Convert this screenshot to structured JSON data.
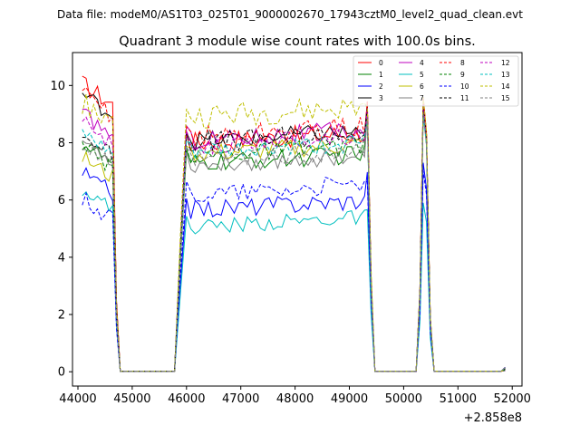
{
  "header": {
    "suptitle": "Data file: modeM0/AS1T03_025T01_9000002670_17943cztM0_level2_quad_clean.evt"
  },
  "chart_data": {
    "type": "line",
    "title": "Quadrant 3 module wise count rates with 100.0s bins.",
    "xlabel": "",
    "ylabel": "",
    "x_offset_label": "+2.858e8",
    "xlim": [
      43900,
      52180
    ],
    "ylim": [
      -0.5,
      11.15
    ],
    "xticks": [
      44000,
      45000,
      46000,
      47000,
      48000,
      49000,
      50000,
      51000,
      52000
    ],
    "xtick_labels": [
      "44000",
      "45000",
      "46000",
      "47000",
      "48000",
      "49000",
      "50000",
      "51000",
      "52000"
    ],
    "yticks": [
      0,
      2,
      4,
      6,
      8,
      10
    ],
    "ytick_labels": [
      "0",
      "2",
      "4",
      "6",
      "8",
      "10"
    ],
    "grid": false,
    "legend_position": "top-right",
    "legend_columns": 4,
    "series": [
      {
        "name": "0",
        "color": "#ff0000",
        "dash": "solid",
        "base": 8.0,
        "amp": 0.35,
        "first": 10.05,
        "s3": 9.55
      },
      {
        "name": "1",
        "color": "#008000",
        "dash": "solid",
        "base": 7.25,
        "amp": 0.3,
        "first": 8.0,
        "s3": 9.2
      },
      {
        "name": "2",
        "color": "#0000ff",
        "dash": "solid",
        "base": 5.65,
        "amp": 0.3,
        "first": 6.95,
        "s3": 7.3
      },
      {
        "name": "3",
        "color": "#000000",
        "dash": "solid",
        "base": 8.05,
        "amp": 0.3,
        "first": 9.7,
        "s3": 9.35
      },
      {
        "name": "4",
        "color": "#bf00bf",
        "dash": "solid",
        "base": 8.1,
        "amp": 0.3,
        "first": 9.0,
        "s3": 9.3
      },
      {
        "name": "5",
        "color": "#00bfbf",
        "dash": "solid",
        "base": 5.05,
        "amp": 0.25,
        "first": 6.4,
        "s3": 5.9
      },
      {
        "name": "6",
        "color": "#bfbf00",
        "dash": "solid",
        "base": 7.6,
        "amp": 0.3,
        "first": 7.5,
        "s3": 9.5
      },
      {
        "name": "7",
        "color": "#808080",
        "dash": "solid",
        "base": 7.2,
        "amp": 0.28,
        "first": 8.1,
        "s3": 9.1
      },
      {
        "name": "8",
        "color": "#ff0000",
        "dash": "dashed",
        "base": 8.2,
        "amp": 0.35,
        "first": 9.7,
        "s3": 9.6
      },
      {
        "name": "9",
        "color": "#008000",
        "dash": "dashed",
        "base": 7.55,
        "amp": 0.3,
        "first": 7.8,
        "s3": 9.2
      },
      {
        "name": "10",
        "color": "#0000ff",
        "dash": "dashed",
        "base": 6.2,
        "amp": 0.3,
        "first": 6.05,
        "s3": 7.0
      },
      {
        "name": "11",
        "color": "#000000",
        "dash": "dashed",
        "base": 8.0,
        "amp": 0.35,
        "first": 8.3,
        "s3": 9.3
      },
      {
        "name": "12",
        "color": "#bf00bf",
        "dash": "dashed",
        "base": 7.9,
        "amp": 0.3,
        "first": 8.7,
        "s3": 9.4
      },
      {
        "name": "13",
        "color": "#00bfbf",
        "dash": "dashed",
        "base": 7.65,
        "amp": 0.3,
        "first": 8.3,
        "s3": 9.0
      },
      {
        "name": "14",
        "color": "#bfbf00",
        "dash": "dashed",
        "base": 8.9,
        "amp": 0.4,
        "first": 9.4,
        "s3": 9.6
      },
      {
        "name": "15",
        "color": "#808080",
        "dash": "dashed",
        "base": 7.35,
        "amp": 0.3,
        "first": 7.9,
        "s3": 9.0
      }
    ],
    "segments": [
      {
        "start": 44080,
        "end": 44780,
        "step": 70
      },
      {
        "start": 45780,
        "end": 49460,
        "step": 80
      },
      {
        "start": 50270,
        "end": 50550,
        "step": 70
      },
      {
        "start": 51820,
        "end": 51880,
        "step": 60
      }
    ]
  }
}
